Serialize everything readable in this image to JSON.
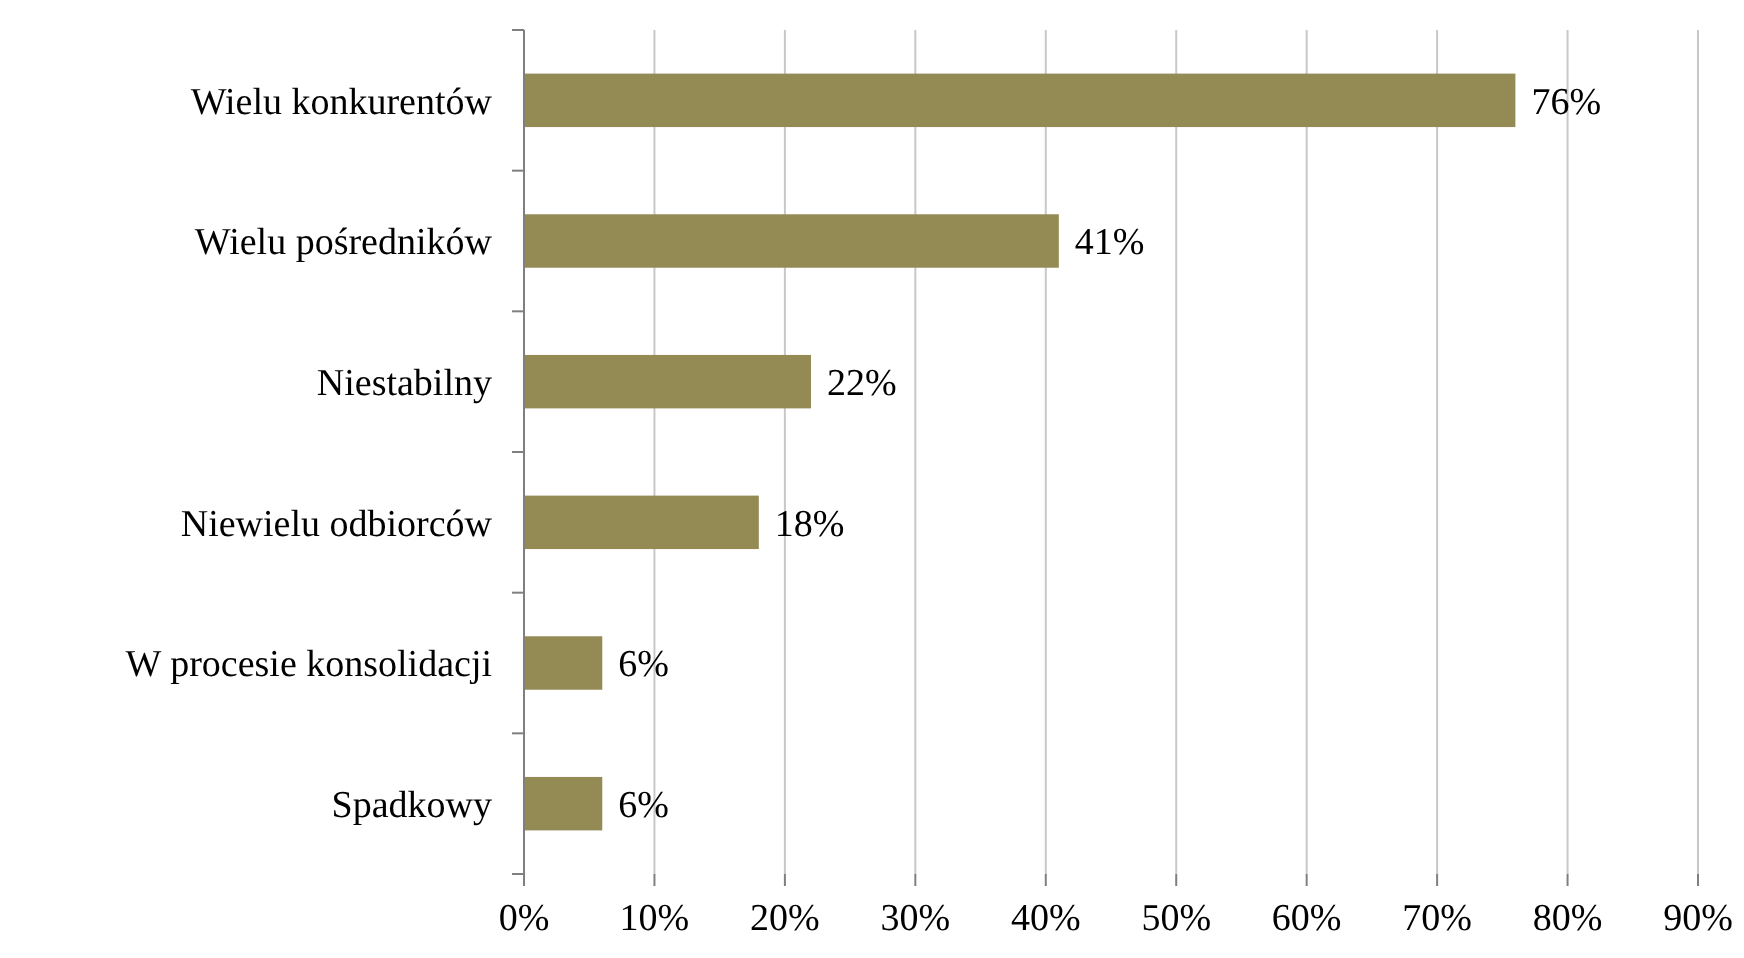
{
  "chart_data": {
    "type": "bar",
    "orientation": "horizontal",
    "categories": [
      "Wielu konkurentów",
      "Wielu pośredników",
      "Niestabilny",
      "Niewielu odbiorców",
      "W procesie konsolidacji",
      "Spadkowy"
    ],
    "values": [
      76,
      41,
      22,
      18,
      6,
      6
    ],
    "value_labels": [
      "76%",
      "41%",
      "22%",
      "18%",
      "6%",
      "6%"
    ],
    "color": "#948a54",
    "xlim": [
      0,
      90
    ],
    "xticks": [
      {
        "value": 0,
        "label": "0%"
      },
      {
        "value": 10,
        "label": "10%"
      },
      {
        "value": 20,
        "label": "20%"
      },
      {
        "value": 30,
        "label": "30%"
      },
      {
        "value": 40,
        "label": "40%"
      },
      {
        "value": 50,
        "label": "50%"
      },
      {
        "value": 60,
        "label": "60%"
      },
      {
        "value": 70,
        "label": "70%"
      },
      {
        "value": 80,
        "label": "80%"
      },
      {
        "value": 90,
        "label": "90%"
      }
    ],
    "grid": "x"
  }
}
